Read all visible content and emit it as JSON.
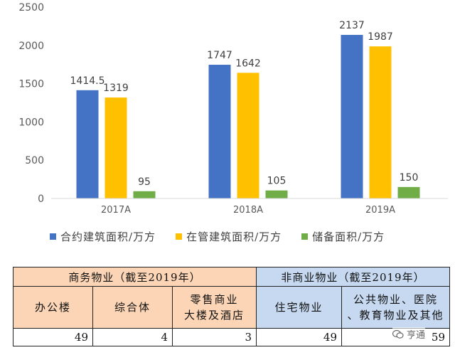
{
  "chart_data": {
    "type": "bar",
    "categories": [
      "2017A",
      "2018A",
      "2019A"
    ],
    "series": [
      {
        "name": "合约建筑面积/万方",
        "values": [
          1414.5,
          1747,
          2137
        ],
        "color": "#4472c4"
      },
      {
        "name": "在管建筑面积/万方",
        "values": [
          1319,
          1642,
          1987
        ],
        "color": "#ffc000"
      },
      {
        "name": "储备面积/万方",
        "values": [
          95,
          105,
          150
        ],
        "color": "#70ad47"
      }
    ],
    "data_labels": [
      [
        "1414.5",
        "1319",
        "95"
      ],
      [
        "1747",
        "1642",
        "105"
      ],
      [
        "2137",
        "1987",
        "150"
      ]
    ],
    "ylim": [
      0,
      2500
    ],
    "yticks": [
      "0",
      "500",
      "1000",
      "1500",
      "2000",
      "2500"
    ],
    "grid": false,
    "legend_position": "bottom"
  },
  "table": {
    "commercial_header": "商务物业（截至2019年）",
    "noncommercial_header": "非商业物业（截至2019年）",
    "commercial": [
      {
        "label_lines": [
          "办公楼"
        ],
        "value": "49"
      },
      {
        "label_lines": [
          "综合体"
        ],
        "value": "4"
      },
      {
        "label_lines": [
          "零售商业",
          "大楼及酒店"
        ],
        "value": "3"
      }
    ],
    "noncommercial": [
      {
        "label_lines": [
          "住宅物业"
        ],
        "value": "49"
      },
      {
        "label_lines": [
          "公共物业、医院",
          "、教育物业及其他"
        ],
        "value": "59"
      }
    ]
  },
  "watermark": {
    "text": "亨通",
    "icon": "wechat-icon"
  }
}
